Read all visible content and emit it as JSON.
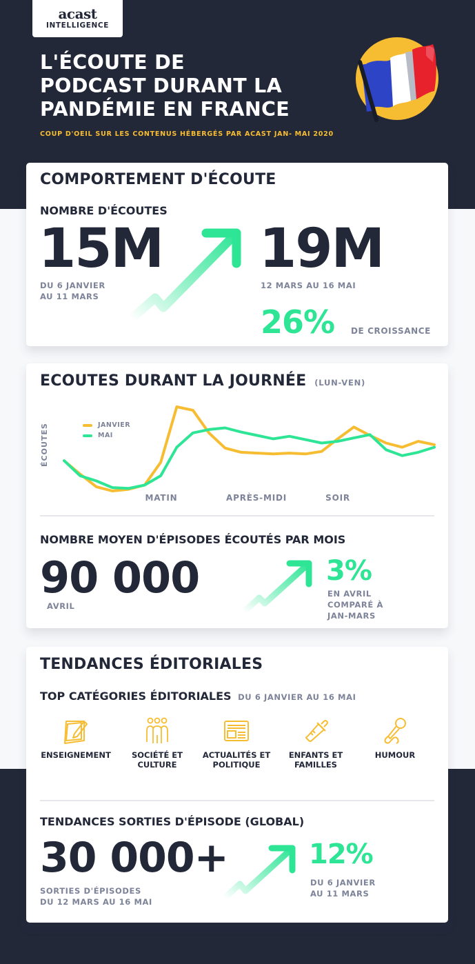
{
  "header": {
    "logo_word": "acast",
    "logo_sub": "INTELLIGENCE",
    "title_lines": [
      "L'ÉCOUTE DE",
      "PODCAST DURANT LA",
      "PANDÉMIE EN FRANCE"
    ],
    "subtitle": "COUP D'OEIL SUR LES CONTENUS HÉBERGÉS PAR ACAST JAN- MAI 2020",
    "flag_icon": "france-flag-icon"
  },
  "colors": {
    "navy": "#232839",
    "green": "#2ee596",
    "yellow": "#f7bd32",
    "muted": "#7d8398",
    "flag_blue": "#2d44c6",
    "flag_red": "#e8222c"
  },
  "listening_behavior": {
    "title": "COMPORTEMENT D'ÉCOUTE",
    "subtitle": "NOMBRE D'ÉCOUTES",
    "before_value": "15M",
    "before_period_line1": "DU 6 JANVIER",
    "before_period_line2": "AU 11 MARS",
    "after_value": "19M",
    "after_period": "12 MARS AU 16 MAI",
    "growth_value": "26%",
    "growth_label": "DE CROISSANCE"
  },
  "daily_listening": {
    "title": "ECOUTES DURANT LA JOURNÉE",
    "title_note": "(LUN-VEN)",
    "y_label": "ÉCOUTES",
    "x_ticks": [
      "MATIN",
      "APRÈS-MIDI",
      "SOIR"
    ],
    "legend": [
      {
        "label": "JANVIER",
        "color": "#f7bd32"
      },
      {
        "label": "MAI",
        "color": "#2ee596"
      }
    ]
  },
  "avg_episodes": {
    "title": "NOMBRE MOYEN D'ÉPISODES ÉCOUTÉS PAR MOIS",
    "value": "90 000",
    "value_label": "AVRIL",
    "growth_value": "3%",
    "growth_line1": "EN AVRIL",
    "growth_line2": "COMPARÉ À",
    "growth_line3": "JAN-MARS"
  },
  "editorial": {
    "title": "TENDANCES ÉDITORIALES",
    "top_title": "TOP CATÉGORIES ÉDITORIALES",
    "top_period": "DU 6 JANVIER AU 16 MAI",
    "categories": [
      {
        "label": "ENSEIGNEMENT",
        "icon": "notepad-pencil-icon"
      },
      {
        "label": "SOCIÉTÉ ET\nCULTURE",
        "icon": "people-group-icon"
      },
      {
        "label": "ACTUALITÉS ET\nPOLITIQUE",
        "icon": "newspaper-icon"
      },
      {
        "label": "ENFANTS ET\nFAMILLES",
        "icon": "baby-bottle-icon"
      },
      {
        "label": "HUMOUR",
        "icon": "microphone-icon"
      }
    ],
    "release_title": "TENDANCES SORTIES D'ÉPISODE (GLOBAL)",
    "release_value": "30 000+",
    "release_line1": "SORTIES D'ÉPISODES",
    "release_line2": "DU 12 MARS AU 16 MAI",
    "release_growth": "12%",
    "release_growth_line1": "DU 6 JANVIER",
    "release_growth_line2": "AU 11 MARS"
  },
  "chart_data": {
    "type": "line",
    "title": "ECOUTES DURANT LA JOURNÉE (LUN-VEN)",
    "xlabel": "",
    "ylabel": "ÉCOUTES",
    "x_tick_labels": [
      "MATIN",
      "APRÈS-MIDI",
      "SOIR"
    ],
    "x": [
      1,
      2,
      3,
      4,
      5,
      6,
      7,
      8,
      9,
      10,
      11,
      12,
      13,
      14,
      15,
      16,
      17,
      18,
      19,
      20,
      21,
      22,
      23,
      24
    ],
    "ylim": [
      0,
      100
    ],
    "grid": false,
    "legend_position": "top-left",
    "series": [
      {
        "name": "JANVIER",
        "color": "#f7bd32",
        "values": [
          36,
          20,
          5,
          0,
          2,
          7,
          34,
          100,
          96,
          69,
          51,
          46,
          45,
          44,
          45,
          44,
          47,
          62,
          76,
          66,
          57,
          52,
          59,
          55
        ]
      },
      {
        "name": "MAI",
        "color": "#2ee596",
        "values": [
          36,
          18,
          12,
          4,
          3,
          7,
          18,
          52,
          69,
          73,
          75,
          70,
          66,
          62,
          65,
          61,
          57,
          59,
          63,
          67,
          49,
          42,
          46,
          52
        ]
      }
    ]
  }
}
